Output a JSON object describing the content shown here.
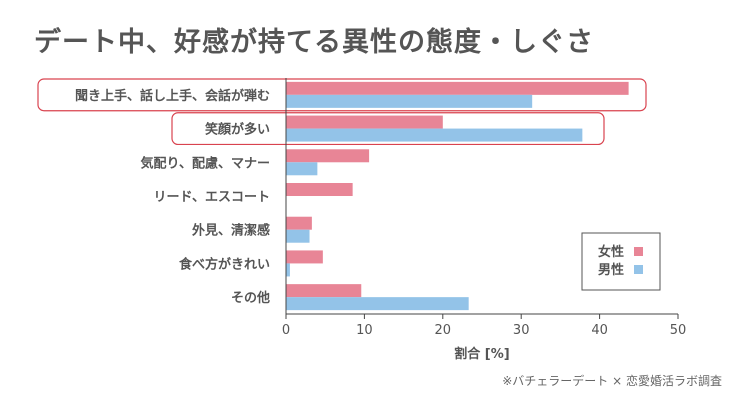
{
  "chart_data": {
    "type": "bar",
    "orientation": "horizontal",
    "title": "デート中、好感が持てる異性の態度・しぐさ",
    "categories": [
      "聞き上手、話し上手、会話が弾む",
      "笑顔が多い",
      "気配り、配慮、マナー",
      "リード、エスコート",
      "外見、清潔感",
      "食べ方がきれい",
      "その他"
    ],
    "series": [
      {
        "name": "女性",
        "color": "#e88596",
        "values": [
          43.7,
          20.0,
          10.6,
          8.5,
          3.3,
          4.7,
          9.6
        ]
      },
      {
        "name": "男性",
        "color": "#93c3e8",
        "values": [
          31.4,
          37.8,
          4.0,
          0,
          3.0,
          0.5,
          23.3
        ]
      }
    ],
    "xlabel": "割合 [%]",
    "xlim": [
      0,
      50
    ],
    "xticks": [
      0,
      10,
      20,
      30,
      40,
      50
    ],
    "highlight_color": "#d9434f",
    "highlighted_categories": [
      0,
      1
    ],
    "grid": false,
    "legend_position": "right"
  },
  "source": "※バチェラーデート × 恋愛婚活ラボ調査"
}
